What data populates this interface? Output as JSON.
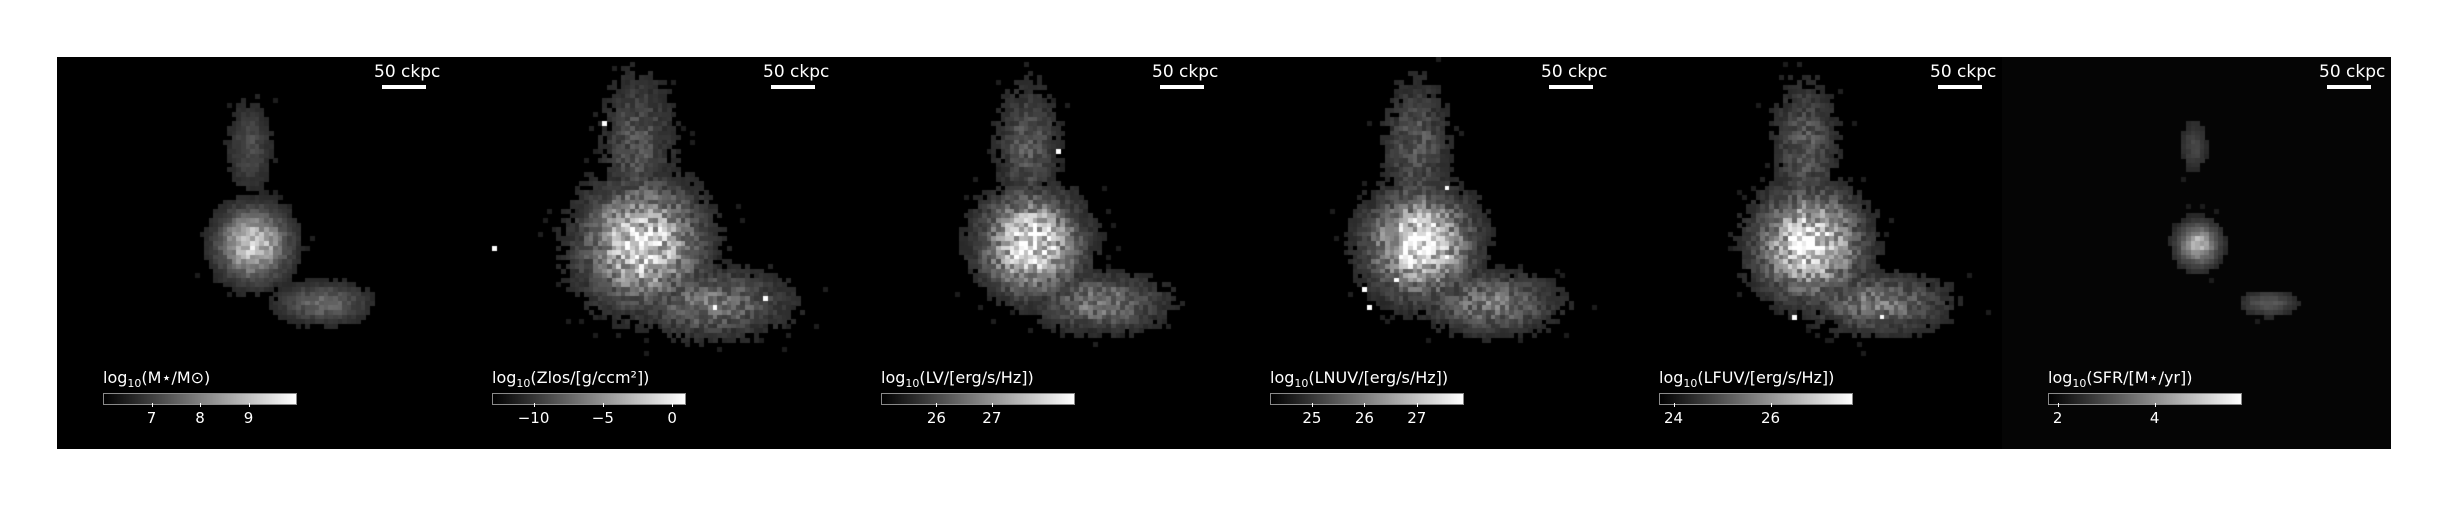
{
  "panels": [
    {
      "scale_label": "50 ckpc",
      "cbar_prefix": "log",
      "cbar_sub": "10",
      "cbar_label": "(M⋆/M⊙)",
      "cbar_range": [
        6,
        10
      ],
      "ticks": [
        "7",
        "8",
        "9"
      ],
      "tick_values": [
        7,
        8,
        9
      ],
      "blob": {
        "spread": 0.75,
        "core": 1.0,
        "noise": 0.25
      }
    },
    {
      "scale_label": "50 ckpc",
      "cbar_prefix": "log",
      "cbar_sub": "10",
      "cbar_label": "(Zlos/[g/ccm²])",
      "cbar_range": [
        -13,
        1
      ],
      "ticks": [
        "−10",
        "−5",
        "0"
      ],
      "tick_values": [
        -10,
        -5,
        0
      ],
      "blob": {
        "spread": 1.2,
        "core": 0.8,
        "noise": 0.6
      }
    },
    {
      "scale_label": "50 ckpc",
      "cbar_prefix": "log",
      "cbar_sub": "10",
      "cbar_label": "(LV/[erg/s/Hz])",
      "cbar_range": [
        25,
        28.5
      ],
      "ticks": [
        "26",
        "27"
      ],
      "tick_values": [
        26,
        27
      ],
      "blob": {
        "spread": 1.0,
        "core": 0.9,
        "noise": 0.55
      }
    },
    {
      "scale_label": "50 ckpc",
      "cbar_prefix": "log",
      "cbar_sub": "10",
      "cbar_label": "(LNUV/[erg/s/Hz])",
      "cbar_range": [
        24.2,
        27.9
      ],
      "ticks": [
        "25",
        "26",
        "27"
      ],
      "tick_values": [
        25,
        26,
        27
      ],
      "blob": {
        "spread": 1.05,
        "core": 0.85,
        "noise": 0.6
      }
    },
    {
      "scale_label": "50 ckpc",
      "cbar_prefix": "log",
      "cbar_sub": "10",
      "cbar_label": "(LFUV/[erg/s/Hz])",
      "cbar_range": [
        23.7,
        27.7
      ],
      "ticks": [
        "24",
        "26"
      ],
      "tick_values": [
        24,
        26
      ],
      "blob": {
        "spread": 1.05,
        "core": 0.85,
        "noise": 0.6
      }
    },
    {
      "scale_label": "50 ckpc",
      "cbar_prefix": "log",
      "cbar_sub": "10",
      "cbar_label": "(SFR/[M⋆/yr])",
      "cbar_range": [
        1.8,
        5.8
      ],
      "ticks": [
        "2",
        "4"
      ],
      "tick_values": [
        2,
        4
      ],
      "blob": {
        "spread": 0.45,
        "core": 1.0,
        "noise": 0.12
      }
    }
  ]
}
